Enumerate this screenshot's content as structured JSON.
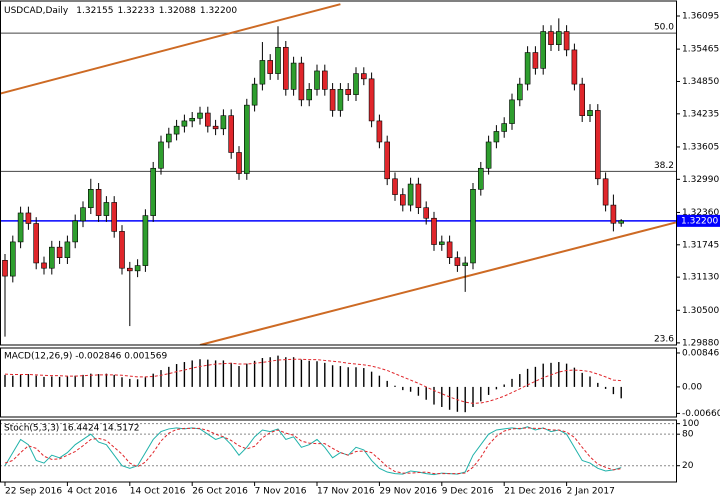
{
  "chart_data": [
    {
      "type": "candlestick",
      "title": "USDCAD,Daily",
      "ohlc_labels": [
        "1.32155",
        "1.32233",
        "1.32088",
        "1.32200"
      ],
      "categories": [
        "22 Sep 2016",
        null,
        null,
        null,
        null,
        null,
        null,
        null,
        "4 Oct 2016",
        null,
        null,
        null,
        null,
        null,
        null,
        null,
        "14 Oct 2016",
        null,
        null,
        null,
        null,
        null,
        null,
        null,
        "26 Oct 2016",
        null,
        null,
        null,
        null,
        null,
        null,
        null,
        "7 Nov 2016",
        null,
        null,
        null,
        null,
        null,
        null,
        null,
        "17 Nov 2016",
        null,
        null,
        null,
        null,
        null,
        null,
        null,
        "29 Nov 2016",
        null,
        null,
        null,
        null,
        null,
        null,
        null,
        "9 Dec 2016",
        null,
        null,
        null,
        null,
        null,
        null,
        null,
        "21 Dec 2016",
        null,
        null,
        null,
        null,
        null,
        null,
        null,
        "2 Jan 2017",
        null,
        null,
        null,
        null,
        null,
        null,
        null
      ],
      "open": [
        1.3145,
        1.3115,
        1.318,
        1.3235,
        1.3215,
        1.314,
        1.313,
        1.317,
        1.315,
        1.318,
        1.322,
        1.3245,
        1.328,
        1.323,
        1.3255,
        1.32,
        1.313,
        1.3125,
        1.3135,
        1.323,
        1.332,
        1.337,
        1.3385,
        1.34,
        1.341,
        1.3415,
        1.3425,
        1.34,
        1.3395,
        1.342,
        1.335,
        1.331,
        1.344,
        1.348,
        1.3525,
        1.35,
        1.355,
        1.347,
        1.352,
        1.345,
        1.347,
        1.3505,
        1.347,
        1.343,
        1.347,
        1.346,
        1.35,
        1.349,
        1.341,
        1.337,
        1.33,
        1.327,
        1.325,
        1.329,
        1.3245,
        1.3225,
        1.3175,
        1.318,
        1.315,
        1.3135,
        1.314,
        1.328,
        1.332,
        1.337,
        1.339,
        1.3405,
        1.345,
        1.348,
        1.354,
        1.351,
        1.358,
        1.3555,
        1.358,
        1.3545,
        1.348,
        1.342,
        1.343,
        1.33,
        1.325,
        1.32155
      ],
      "high": [
        1.3157,
        1.3192,
        1.3247,
        1.3247,
        1.3227,
        1.3152,
        1.3182,
        1.3182,
        1.3192,
        1.3232,
        1.3257,
        1.33,
        1.3292,
        1.3267,
        1.3267,
        1.3212,
        1.3142,
        1.3147,
        1.3242,
        1.3332,
        1.3382,
        1.3397,
        1.3412,
        1.3422,
        1.3427,
        1.3437,
        1.3437,
        1.3412,
        1.3432,
        1.3432,
        1.3362,
        1.3452,
        1.3492,
        1.356,
        1.3537,
        1.359,
        1.3562,
        1.3532,
        1.3532,
        1.3482,
        1.3517,
        1.3517,
        1.3482,
        1.3482,
        1.3482,
        1.3512,
        1.3512,
        1.3502,
        1.3422,
        1.3382,
        1.3312,
        1.3282,
        1.3302,
        1.3302,
        1.3257,
        1.3237,
        1.3192,
        1.3192,
        1.3162,
        1.3152,
        1.3292,
        1.3332,
        1.3382,
        1.3402,
        1.3417,
        1.3462,
        1.3492,
        1.3552,
        1.3552,
        1.3592,
        1.3592,
        1.3605,
        1.3592,
        1.3557,
        1.3492,
        1.3442,
        1.3442,
        1.3312,
        1.327,
        1.32233
      ],
      "low": [
        1.3,
        1.3103,
        1.3168,
        1.3203,
        1.3128,
        1.3118,
        1.3118,
        1.3138,
        1.3138,
        1.3168,
        1.3208,
        1.3233,
        1.3218,
        1.3218,
        1.3188,
        1.3118,
        1.302,
        1.3113,
        1.3123,
        1.3218,
        1.3308,
        1.3358,
        1.3373,
        1.3388,
        1.3398,
        1.3403,
        1.3388,
        1.3383,
        1.3383,
        1.3338,
        1.3298,
        1.3298,
        1.3428,
        1.3468,
        1.3488,
        1.3488,
        1.3458,
        1.3458,
        1.3438,
        1.3438,
        1.3458,
        1.3458,
        1.3418,
        1.3418,
        1.3448,
        1.3448,
        1.3478,
        1.3398,
        1.3358,
        1.3288,
        1.3258,
        1.3238,
        1.3238,
        1.3233,
        1.3213,
        1.3163,
        1.3163,
        1.3138,
        1.3123,
        1.3085,
        1.3128,
        1.3268,
        1.3308,
        1.3358,
        1.3378,
        1.3393,
        1.3438,
        1.3468,
        1.3498,
        1.3498,
        1.3543,
        1.3543,
        1.3533,
        1.3468,
        1.3408,
        1.3408,
        1.3288,
        1.3238,
        1.32,
        1.32088
      ],
      "close": [
        1.3115,
        1.318,
        1.3235,
        1.3215,
        1.314,
        1.313,
        1.317,
        1.315,
        1.318,
        1.322,
        1.3245,
        1.328,
        1.323,
        1.3255,
        1.32,
        1.313,
        1.3125,
        1.3135,
        1.323,
        1.332,
        1.337,
        1.3385,
        1.34,
        1.341,
        1.3415,
        1.3425,
        1.34,
        1.3395,
        1.342,
        1.335,
        1.331,
        1.344,
        1.348,
        1.3525,
        1.35,
        1.355,
        1.347,
        1.352,
        1.345,
        1.347,
        1.3505,
        1.347,
        1.343,
        1.347,
        1.346,
        1.35,
        1.349,
        1.341,
        1.337,
        1.33,
        1.327,
        1.325,
        1.329,
        1.3245,
        1.3225,
        1.3175,
        1.318,
        1.315,
        1.3135,
        1.314,
        1.328,
        1.332,
        1.337,
        1.339,
        1.3405,
        1.345,
        1.348,
        1.354,
        1.351,
        1.358,
        1.3555,
        1.358,
        1.3545,
        1.348,
        1.342,
        1.343,
        1.33,
        1.325,
        1.32155,
        1.322
      ],
      "bull_color": "#2e9e2e",
      "bear_color": "#e0262b",
      "ylim": [
        1.2984,
        1.3638
      ],
      "yticks": [
        1.36095,
        1.35465,
        {
          "value": 1.3485,
          "label": "1.34850"
        },
        1.34235,
        1.33605,
        {
          "value": 1.3299,
          "label": "1.32990"
        },
        {
          "value": 1.3236,
          "label": "1.32360"
        },
        1.31745,
        {
          "value": 1.3113,
          "label": "1.31130"
        },
        {
          "value": 1.305,
          "label": "1.30500"
        },
        {
          "value": 1.2988,
          "label": "1.29880"
        }
      ],
      "price_line": {
        "value": 1.322,
        "label": "1.32200",
        "color": "#0000ff"
      },
      "fib_levels": [
        {
          "value": 1.3577,
          "label": "50.0"
        },
        {
          "value": 1.3314,
          "label": "38.2"
        },
        {
          "value": 1.2984,
          "label": "23.6"
        }
      ],
      "trend_lines": [
        {
          "x": [
            -0.6,
            43
          ],
          "y": [
            1.3462,
            1.3632
          ],
          "color": "#cd6a24"
        },
        {
          "x": [
            25,
            86
          ],
          "y": [
            1.2984,
            1.3217
          ],
          "color": "#cd6a24"
        }
      ]
    },
    {
      "type": "macd",
      "title": "MACD(12,26,9) -0.002846 0.001569",
      "ylim": [
        -0.0075,
        0.0097
      ],
      "yticks": [
        0.008461,
        {
          "value": 0,
          "label": "0.00"
        },
        -0.006605
      ],
      "series": [
        {
          "color": "#000000",
          "style": "histogram",
          "values": [
            0.003,
            0.0028,
            0.003,
            0.0032,
            0.0028,
            0.0025,
            0.0026,
            0.0025,
            0.0026,
            0.0028,
            0.003,
            0.0033,
            0.0032,
            0.0033,
            0.003,
            0.0024,
            0.002,
            0.0019,
            0.0024,
            0.0033,
            0.0042,
            0.005,
            0.0057,
            0.0062,
            0.0066,
            0.0069,
            0.0068,
            0.0066,
            0.0066,
            0.006,
            0.0052,
            0.0058,
            0.0065,
            0.0072,
            0.0074,
            0.0078,
            0.0074,
            0.0074,
            0.0068,
            0.0065,
            0.0064,
            0.006,
            0.0054,
            0.0052,
            0.0049,
            0.0049,
            0.0047,
            0.0038,
            0.0028,
            0.0015,
            0.0003,
            -0.0008,
            -0.0012,
            -0.0022,
            -0.0032,
            -0.0044,
            -0.005,
            -0.0057,
            -0.0062,
            -0.0063,
            -0.005,
            -0.0036,
            -0.002,
            -0.0006,
            0.0006,
            0.002,
            0.0032,
            0.0045,
            0.005,
            0.0058,
            0.006,
            0.0062,
            0.0058,
            0.0048,
            0.0035,
            0.0026,
            0.001,
            -0.0005,
            -0.0018,
            -0.002846
          ]
        },
        {
          "color": "#e0262b",
          "style": "dashed",
          "values": [
            0.0032,
            0.0031,
            0.0031,
            0.0031,
            0.003,
            0.0029,
            0.0028,
            0.0028,
            0.0027,
            0.0027,
            0.0028,
            0.0029,
            0.003,
            0.003,
            0.003,
            0.0029,
            0.0027,
            0.0025,
            0.0025,
            0.0026,
            0.0029,
            0.0033,
            0.0038,
            0.0042,
            0.0047,
            0.0051,
            0.0054,
            0.0057,
            0.0058,
            0.0059,
            0.0057,
            0.0057,
            0.0059,
            0.0061,
            0.0064,
            0.0067,
            0.0068,
            0.0069,
            0.0069,
            0.0068,
            0.0068,
            0.0066,
            0.0064,
            0.0062,
            0.0059,
            0.0057,
            0.0055,
            0.0052,
            0.0047,
            0.0041,
            0.0033,
            0.0025,
            0.0017,
            0.0009,
            0.0,
            -0.0009,
            -0.0017,
            -0.0025,
            -0.0032,
            -0.0038,
            -0.0041,
            -0.004,
            -0.0036,
            -0.003,
            -0.0023,
            -0.0014,
            -0.0005,
            0.0005,
            0.0014,
            0.0023,
            0.003,
            0.0037,
            0.0041,
            0.0042,
            0.0041,
            0.0038,
            0.0032,
            0.0025,
            0.0017,
            0.001569
          ]
        }
      ]
    },
    {
      "type": "stochastic",
      "title": "Stoch(5,3,3) 16.4424 14.5172",
      "ylim": [
        -11,
        107
      ],
      "yticks": [
        100,
        80,
        20
      ],
      "grid": true,
      "series": [
        {
          "color": "#20b2aa",
          "style": "solid",
          "values": [
            20,
            45,
            70,
            60,
            30,
            25,
            40,
            35,
            45,
            60,
            70,
            80,
            65,
            60,
            40,
            20,
            15,
            20,
            45,
            70,
            85,
            90,
            92,
            90,
            92,
            90,
            80,
            70,
            75,
            60,
            40,
            55,
            75,
            88,
            85,
            90,
            70,
            75,
            55,
            60,
            70,
            55,
            35,
            45,
            40,
            55,
            50,
            30,
            15,
            8,
            5,
            4,
            10,
            8,
            5,
            3,
            6,
            5,
            4,
            8,
            40,
            60,
            80,
            88,
            90,
            92,
            90,
            94,
            88,
            92,
            85,
            88,
            80,
            55,
            30,
            25,
            15,
            10,
            12,
            16.4424
          ]
        },
        {
          "color": "#e0262b",
          "style": "dashed",
          "values": [
            25,
            30,
            45,
            58,
            53,
            38,
            32,
            33,
            40,
            47,
            58,
            70,
            72,
            68,
            55,
            42,
            25,
            18,
            27,
            45,
            67,
            82,
            89,
            91,
            91,
            91,
            87,
            80,
            75,
            68,
            58,
            52,
            57,
            73,
            83,
            88,
            82,
            78,
            67,
            63,
            62,
            62,
            53,
            45,
            40,
            47,
            48,
            45,
            32,
            18,
            9,
            6,
            6,
            7,
            8,
            5,
            5,
            5,
            5,
            6,
            17,
            36,
            60,
            76,
            86,
            90,
            91,
            92,
            91,
            91,
            88,
            88,
            84,
            74,
            55,
            37,
            23,
            17,
            12,
            14.5172
          ]
        }
      ]
    }
  ]
}
